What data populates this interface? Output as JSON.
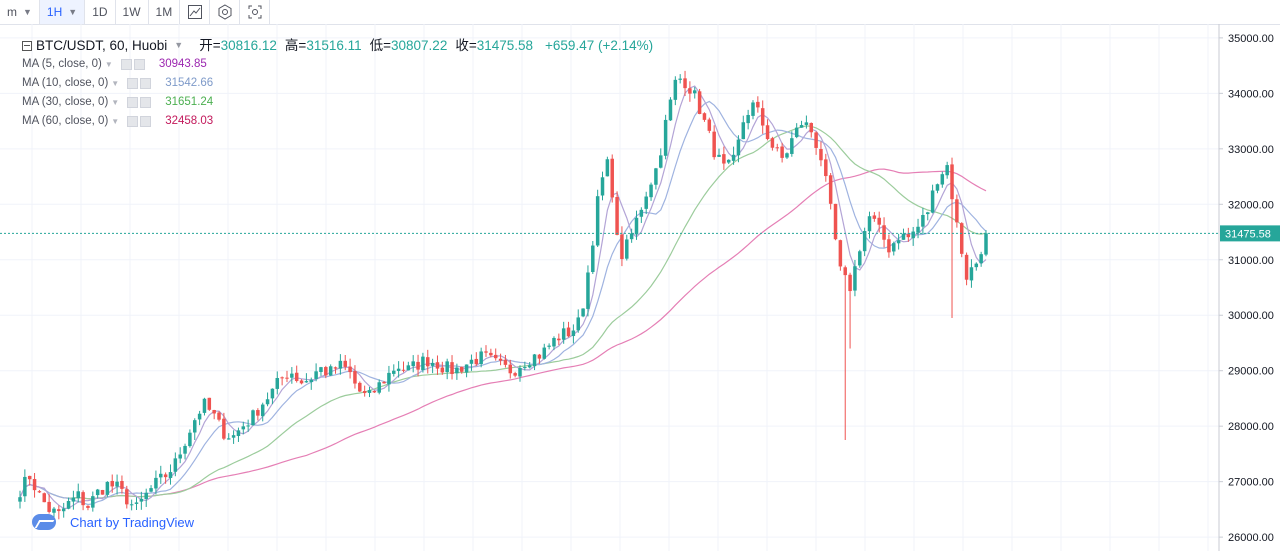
{
  "toolbar": {
    "items": [
      {
        "label": "m",
        "active": false,
        "dropdown": true
      },
      {
        "label": "1H",
        "active": true,
        "dropdown": true
      },
      {
        "label": "1D",
        "active": false
      },
      {
        "label": "1W",
        "active": false
      },
      {
        "label": "1M",
        "active": false
      }
    ],
    "icons": [
      "chart-compare-icon",
      "settings-gear-icon",
      "screenshot-icon"
    ]
  },
  "legend": {
    "symbol": "BTC/USDT, 60, Huobi",
    "open_label": "开=",
    "open": "30816.12",
    "high_label": "高=",
    "high": "31516.11",
    "low_label": "低=",
    "low": "30807.22",
    "close_label": "收=",
    "close": "31475.58",
    "change": "+659.47 (+2.14%)",
    "ma": [
      {
        "label": "MA (5, close, 0)",
        "value": "30943.85",
        "color": "#9c27b0"
      },
      {
        "label": "MA (10, close, 0)",
        "value": "31542.66",
        "color": "#7e9ac9"
      },
      {
        "label": "MA (30, close, 0)",
        "value": "31651.24",
        "color": "#4caf50"
      },
      {
        "label": "MA (60, close, 0)",
        "value": "32458.03",
        "color": "#c2185b"
      }
    ]
  },
  "branding": "Chart by TradingView",
  "chart_data": {
    "type": "candlestick",
    "y_ticks": [
      26000,
      27000,
      28000,
      29000,
      30000,
      31000,
      32000,
      33000,
      34000,
      35000
    ],
    "ylim": [
      25750,
      35250
    ],
    "last_price": 31475.58,
    "up_color": "#26a69a",
    "down_color": "#ef5350",
    "ma_colors": {
      "ma5": "#b3a4d6",
      "ma10": "#9fb3e0",
      "ma30": "#9ccc9c",
      "ma60": "#e57fb5"
    },
    "close_path": [
      26850,
      27100,
      26750,
      26500,
      26400,
      26600,
      26750,
      26550,
      26800,
      26950,
      26900,
      26700,
      26500,
      26750,
      26950,
      27100,
      27300,
      27700,
      28100,
      28400,
      28200,
      27900,
      27800,
      28000,
      28150,
      28400,
      28600,
      28850,
      29000,
      28800,
      28850,
      29050,
      28950,
      29100,
      29000,
      28650,
      28500,
      28700,
      28900,
      29100,
      29000,
      29100,
      29200,
      29150,
      29050,
      29000,
      29100,
      29200,
      29250,
      29150,
      29050,
      29000,
      29150,
      29250,
      29300,
      29500,
      29650,
      29700,
      29900,
      31000,
      32300,
      32800,
      31000,
      31300,
      31800,
      32300,
      32700,
      33600,
      34300,
      34200,
      33900,
      33400,
      32900,
      32600,
      32800,
      33600,
      33800,
      33400,
      33000,
      32800,
      33200,
      33500,
      33300,
      32800,
      31800,
      30700,
      30500,
      31300,
      31800,
      31500,
      31200,
      31450,
      31400,
      31600,
      31900,
      32500,
      32700,
      31600,
      30700,
      30950,
      31475
    ]
  }
}
